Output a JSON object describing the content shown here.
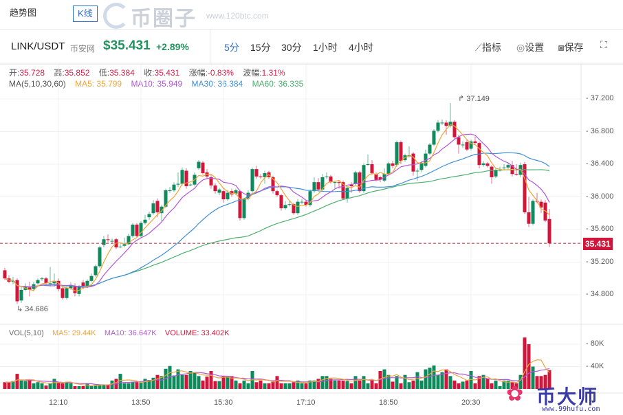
{
  "tabs": {
    "trend": "趋势图",
    "kline": "K线"
  },
  "watermark_top": {
    "brand": "币圈子",
    "url": "www.120btc.com"
  },
  "watermark_bottom": {
    "brand": "币大师",
    "url": "www.99hufu.com"
  },
  "header": {
    "pair": "LINK/USDT",
    "exchange": "币安网",
    "price": "$35.431",
    "change": "+2.89%",
    "intervals": [
      "5分",
      "15分",
      "30分",
      "1小时",
      "4小时"
    ],
    "active_interval": "5分",
    "tools": {
      "indicators": "指标",
      "settings": "设置",
      "save": "保存"
    }
  },
  "info": {
    "open_label": "开:",
    "open": "35.728",
    "high_label": "高:",
    "high": "35.852",
    "low_label": "低:",
    "low": "35.384",
    "close_label": "收:",
    "close": "35.431",
    "change_label": "涨幅:",
    "change": "-0.83%",
    "amp_label": "波幅:",
    "amp": "1.31%"
  },
  "ma_legend": {
    "title": "MA(5,10,30,60)",
    "ma5": "MA5: 35.799",
    "ma10": "MA10: 35.949",
    "ma30": "MA30: 36.384",
    "ma60": "MA60: 36.335"
  },
  "vol_legend": {
    "title": "VOL(5,10)",
    "ma5": "MA5: 29.44K",
    "ma10": "MA10: 36.647K",
    "volume": "VOLUME: 33.402K"
  },
  "colors": {
    "up": "#0e8a5c",
    "down": "#d0163a",
    "ma5": "#f0a43a",
    "ma10": "#b257d8",
    "ma30": "#3f8fd9",
    "ma60": "#4caf6e",
    "accent": "#2f6fd0"
  },
  "chart_data": {
    "type": "candlestick",
    "price_axis": {
      "ticks": [
        "37.200",
        "36.800",
        "36.400",
        "36.000",
        "35.600",
        "35.200",
        "34.800"
      ],
      "range": [
        34.6,
        37.6
      ]
    },
    "volume_axis": {
      "ticks": [
        "80K",
        "40K"
      ],
      "range": [
        0,
        100
      ]
    },
    "time_ticks": [
      "12:10",
      "13:50",
      "15:30",
      "17:10",
      "18:50",
      "20:30"
    ],
    "last_price": "35.431",
    "max_label": "37.149",
    "min_label": "34.686",
    "candles": [
      [
        35.1,
        35.13,
        34.98,
        35.0
      ],
      [
        35.0,
        35.04,
        34.94,
        34.96
      ],
      [
        34.97,
        35.02,
        34.93,
        34.97
      ],
      [
        34.98,
        35.0,
        34.686,
        34.72
      ],
      [
        34.73,
        34.9,
        34.7,
        34.86
      ],
      [
        34.86,
        34.94,
        34.84,
        34.9
      ],
      [
        34.89,
        34.96,
        34.78,
        34.86
      ],
      [
        34.87,
        34.96,
        34.84,
        34.93
      ],
      [
        34.94,
        35.0,
        34.92,
        34.98
      ],
      [
        35.0,
        35.02,
        34.97,
        35.0
      ],
      [
        35.0,
        35.02,
        34.92,
        34.94
      ],
      [
        34.94,
        35.14,
        34.9,
        34.94
      ],
      [
        34.94,
        35.06,
        34.9,
        34.97
      ],
      [
        34.97,
        35.0,
        34.84,
        34.87
      ],
      [
        34.88,
        34.9,
        34.74,
        34.76
      ],
      [
        34.76,
        34.9,
        34.74,
        34.88
      ],
      [
        34.88,
        34.95,
        34.86,
        34.91
      ],
      [
        34.91,
        34.94,
        34.78,
        34.82
      ],
      [
        34.81,
        34.92,
        34.78,
        34.9
      ],
      [
        34.95,
        34.98,
        34.87,
        34.9
      ],
      [
        34.9,
        34.99,
        34.88,
        34.97
      ],
      [
        34.97,
        35.06,
        34.95,
        35.03
      ],
      [
        35.04,
        35.17,
        35.02,
        35.15
      ],
      [
        35.15,
        35.4,
        35.13,
        35.38
      ],
      [
        35.41,
        35.52,
        35.38,
        35.48
      ],
      [
        35.48,
        35.54,
        35.44,
        35.47
      ],
      [
        35.46,
        35.49,
        35.43,
        35.46
      ],
      [
        35.48,
        35.5,
        35.36,
        35.38
      ],
      [
        35.39,
        35.42,
        35.37,
        35.39
      ],
      [
        35.4,
        35.5,
        35.38,
        35.42
      ],
      [
        35.42,
        35.55,
        35.41,
        35.52
      ],
      [
        35.52,
        35.68,
        35.5,
        35.66
      ],
      [
        35.66,
        35.68,
        35.5,
        35.52
      ],
      [
        35.52,
        35.7,
        35.5,
        35.68
      ],
      [
        35.68,
        35.78,
        35.66,
        35.72
      ],
      [
        35.75,
        35.82,
        35.72,
        35.79
      ],
      [
        35.8,
        35.96,
        35.78,
        35.92
      ],
      [
        35.95,
        35.98,
        35.75,
        35.81
      ],
      [
        35.8,
        35.9,
        35.7,
        35.88
      ],
      [
        35.88,
        36.1,
        35.86,
        36.08
      ],
      [
        36.08,
        36.12,
        36.05,
        36.08
      ],
      [
        36.08,
        36.18,
        36.06,
        36.15
      ],
      [
        36.15,
        36.3,
        36.12,
        36.16
      ],
      [
        36.16,
        36.36,
        36.14,
        36.33
      ],
      [
        36.32,
        36.35,
        36.1,
        36.13
      ],
      [
        36.15,
        36.17,
        36.13,
        36.15
      ],
      [
        36.15,
        36.3,
        36.13,
        36.27
      ],
      [
        36.35,
        36.45,
        36.33,
        36.43
      ],
      [
        36.42,
        36.44,
        36.27,
        36.29
      ],
      [
        36.3,
        36.34,
        36.22,
        36.25
      ],
      [
        36.24,
        36.27,
        36.1,
        36.14
      ],
      [
        36.14,
        36.17,
        36.04,
        36.07
      ],
      [
        36.05,
        36.11,
        36.02,
        36.09
      ],
      [
        36.07,
        36.09,
        35.93,
        35.97
      ],
      [
        35.97,
        36.08,
        35.95,
        36.05
      ],
      [
        36.07,
        36.1,
        36.0,
        36.03
      ],
      [
        36.04,
        36.1,
        36.02,
        36.08
      ],
      [
        36.07,
        36.09,
        35.71,
        35.74
      ],
      [
        35.74,
        35.99,
        35.72,
        35.97
      ],
      [
        35.98,
        36.08,
        35.96,
        36.05
      ],
      [
        36.07,
        36.36,
        36.05,
        36.34
      ],
      [
        36.34,
        36.38,
        36.22,
        36.25
      ],
      [
        36.25,
        36.28,
        36.22,
        36.24
      ],
      [
        36.24,
        36.32,
        36.16,
        36.29
      ],
      [
        36.3,
        36.32,
        36.22,
        36.24
      ],
      [
        36.24,
        36.26,
        36.04,
        36.07
      ],
      [
        36.07,
        36.09,
        36.0,
        36.02
      ],
      [
        36.02,
        36.04,
        35.83,
        35.86
      ],
      [
        35.86,
        35.95,
        35.84,
        35.9
      ],
      [
        35.91,
        35.95,
        35.88,
        35.91
      ],
      [
        35.91,
        35.93,
        35.78,
        35.8
      ],
      [
        35.8,
        35.97,
        35.78,
        35.94
      ],
      [
        35.94,
        35.97,
        35.91,
        35.94
      ],
      [
        35.94,
        35.96,
        35.88,
        35.9
      ],
      [
        35.9,
        36.09,
        35.88,
        36.07
      ],
      [
        36.07,
        36.24,
        36.05,
        36.18
      ],
      [
        36.18,
        36.23,
        36.07,
        36.09
      ],
      [
        36.09,
        36.28,
        36.07,
        36.24
      ],
      [
        36.25,
        36.3,
        36.22,
        36.25
      ],
      [
        36.25,
        36.27,
        36.16,
        36.18
      ],
      [
        36.18,
        36.2,
        36.1,
        36.18
      ],
      [
        36.18,
        36.2,
        36.1,
        36.17
      ],
      [
        36.18,
        36.2,
        35.96,
        35.98
      ],
      [
        35.98,
        36.13,
        35.93,
        36.11
      ],
      [
        36.15,
        36.18,
        36.05,
        36.13
      ],
      [
        36.16,
        36.32,
        36.14,
        36.3
      ],
      [
        36.3,
        36.32,
        36.05,
        36.07
      ],
      [
        36.07,
        36.41,
        36.05,
        36.39
      ],
      [
        36.4,
        36.52,
        36.38,
        36.4
      ],
      [
        36.4,
        36.45,
        36.27,
        36.29
      ],
      [
        36.28,
        36.3,
        36.19,
        36.21
      ],
      [
        36.24,
        36.26,
        36.18,
        36.21
      ],
      [
        36.2,
        36.35,
        36.18,
        36.28
      ],
      [
        36.28,
        36.43,
        36.26,
        36.41
      ],
      [
        36.41,
        36.44,
        36.35,
        36.38
      ],
      [
        36.39,
        36.69,
        36.37,
        36.67
      ],
      [
        36.67,
        36.69,
        36.4,
        36.44
      ],
      [
        36.45,
        36.53,
        36.43,
        36.51
      ],
      [
        36.51,
        36.62,
        36.48,
        36.51
      ],
      [
        36.53,
        36.55,
        36.26,
        36.31
      ],
      [
        36.32,
        36.35,
        36.2,
        36.32
      ],
      [
        36.33,
        36.44,
        36.3,
        36.41
      ],
      [
        36.38,
        36.58,
        36.36,
        36.53
      ],
      [
        36.53,
        36.66,
        36.51,
        36.64
      ],
      [
        36.64,
        36.83,
        36.62,
        36.81
      ],
      [
        36.81,
        36.94,
        36.79,
        36.91
      ],
      [
        36.91,
        36.95,
        36.88,
        36.91
      ],
      [
        36.91,
        36.94,
        36.76,
        36.87
      ],
      [
        36.87,
        37.149,
        36.85,
        36.92
      ],
      [
        36.92,
        36.94,
        36.7,
        36.73
      ],
      [
        36.73,
        36.76,
        36.53,
        36.64
      ],
      [
        36.64,
        36.68,
        36.6,
        36.64
      ],
      [
        36.67,
        36.7,
        36.56,
        36.58
      ],
      [
        36.59,
        36.7,
        36.57,
        36.68
      ],
      [
        36.68,
        36.74,
        36.64,
        36.66
      ],
      [
        36.66,
        36.68,
        36.35,
        36.39
      ],
      [
        36.39,
        36.44,
        36.37,
        36.41
      ],
      [
        36.41,
        36.43,
        36.36,
        36.38
      ],
      [
        36.37,
        36.39,
        36.16,
        36.24
      ],
      [
        36.25,
        36.35,
        36.23,
        36.33
      ],
      [
        36.33,
        36.37,
        36.31,
        36.33
      ],
      [
        36.36,
        36.4,
        36.33,
        36.36
      ],
      [
        36.36,
        36.42,
        36.34,
        36.39
      ],
      [
        36.39,
        36.44,
        36.25,
        36.28
      ],
      [
        36.28,
        36.4,
        36.26,
        36.27
      ],
      [
        36.27,
        36.42,
        36.24,
        36.39
      ],
      [
        36.4,
        36.43,
        35.79,
        35.81
      ],
      [
        35.81,
        36.0,
        35.63,
        35.67
      ],
      [
        35.67,
        35.97,
        35.65,
        35.95
      ],
      [
        35.95,
        36.05,
        35.92,
        35.94
      ],
      [
        35.94,
        35.97,
        35.8,
        35.87
      ],
      [
        35.93,
        35.96,
        35.69,
        35.71
      ],
      [
        35.728,
        35.852,
        35.384,
        35.431
      ]
    ],
    "volumes_k": [
      12,
      12,
      14,
      27,
      15,
      14,
      15,
      10,
      12,
      10,
      6,
      10,
      18,
      12,
      10,
      12,
      10,
      5,
      5,
      5,
      10,
      5,
      6,
      8,
      8,
      8,
      15,
      18,
      27,
      10,
      10,
      12,
      12,
      12,
      18,
      16,
      20,
      25,
      23,
      36,
      41,
      24,
      35,
      25,
      25,
      32,
      30,
      23,
      15,
      22,
      32,
      14,
      14,
      23,
      23,
      23,
      15,
      10,
      15,
      10,
      32,
      12,
      15,
      10,
      10,
      15,
      23,
      10,
      10,
      10,
      12,
      15,
      10,
      10,
      15,
      15,
      18,
      23,
      23,
      18,
      15,
      15,
      15,
      14,
      10,
      23,
      15,
      23,
      10,
      15,
      10,
      32,
      35,
      25,
      13,
      23,
      10,
      25,
      12,
      15,
      30,
      15,
      35,
      38,
      42,
      25,
      30,
      35,
      23,
      15,
      10,
      13,
      15,
      32,
      10,
      23,
      25,
      18,
      10,
      15,
      5,
      15,
      15,
      12,
      10,
      25,
      92,
      80,
      40,
      23,
      23,
      25,
      33.4
    ]
  }
}
